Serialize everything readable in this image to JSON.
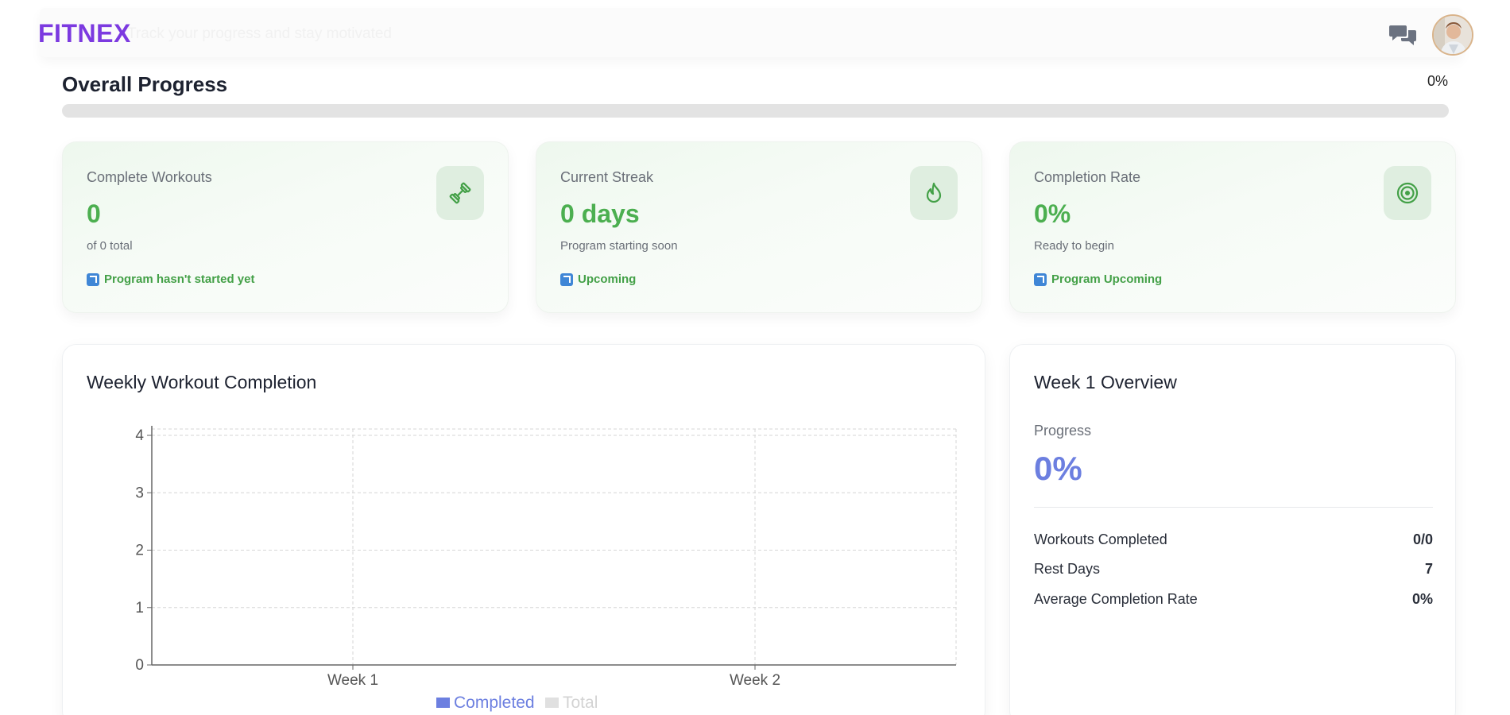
{
  "header": {
    "logo": "FITNEX",
    "ghost_text": "Track your progress and stay motivated"
  },
  "overall": {
    "title": "Overall Progress",
    "percent_label": "0%",
    "progress_fraction": 0
  },
  "stats": [
    {
      "label": "Complete Workouts",
      "value": "0",
      "sub": "of 0 total",
      "tag": "Program hasn't started yet",
      "icon": "dumbbell-icon"
    },
    {
      "label": "Current Streak",
      "value": "0 days",
      "sub": "Program starting soon",
      "tag": "Upcoming",
      "icon": "flame-icon"
    },
    {
      "label": "Completion Rate",
      "value": "0%",
      "sub": "Ready to begin",
      "tag": "Program Upcoming",
      "icon": "target-icon"
    }
  ],
  "weekly_chart": {
    "title": "Weekly Workout Completion"
  },
  "week_overview": {
    "title": "Week 1 Overview",
    "progress_label": "Progress",
    "progress_value": "0%",
    "rows": [
      {
        "label": "Workouts Completed",
        "value": "0/0"
      },
      {
        "label": "Rest Days",
        "value": "7"
      },
      {
        "label": "Average Completion Rate",
        "value": "0%"
      }
    ]
  },
  "colors": {
    "brand": "#7c3ae0",
    "success": "#4caf50",
    "accent": "#6c7fe0",
    "completed_series": "#6c7fe0",
    "total_series": "#e0e0e0"
  },
  "chart_data": {
    "type": "bar",
    "categories": [
      "Week 1",
      "Week 2"
    ],
    "series": [
      {
        "name": "Completed",
        "values": [
          0,
          0
        ]
      },
      {
        "name": "Total",
        "values": [
          0,
          0
        ]
      }
    ],
    "yticks": [
      "0",
      "1",
      "2",
      "3",
      "4"
    ],
    "ylim": [
      0,
      4
    ],
    "grid": true,
    "legend": "bottom"
  }
}
